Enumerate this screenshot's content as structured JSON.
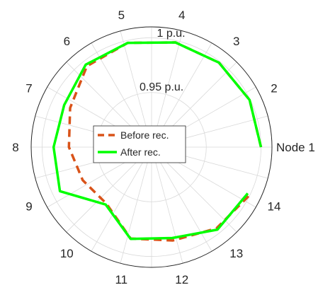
{
  "chart_data": {
    "type": "polar-line",
    "angular_labels": [
      "Node 1",
      "2",
      "3",
      "4",
      "5",
      "6",
      "7",
      "8",
      "9",
      "10",
      "11",
      "12",
      "13",
      "14"
    ],
    "radial_ticks": [
      {
        "value": 0.95,
        "label": "0.95 p.u."
      },
      {
        "value": 1.0,
        "label": "1 p.u."
      }
    ],
    "rlim": [
      0.9,
      1.01
    ],
    "series": [
      {
        "name": "Before rec.",
        "color": "#D95319",
        "style": "dashed",
        "values": [
          1.0,
          0.9994,
          0.9988,
          0.9982,
          0.9978,
          0.9948,
          0.9826,
          0.9755,
          0.9698,
          0.9661,
          0.9858,
          0.9876,
          0.9951,
          1.0
        ]
      },
      {
        "name": "After rec.",
        "color": "#00FF00",
        "style": "solid",
        "values": [
          1.0,
          0.9994,
          0.9988,
          0.9982,
          0.9978,
          0.9965,
          0.9886,
          0.9895,
          0.9929,
          0.9672,
          0.9861,
          0.9853,
          0.9965,
          0.9975
        ]
      }
    ],
    "legend": {
      "position": "center",
      "entries": [
        "Before rec.",
        "After rec."
      ]
    },
    "grid": true
  }
}
